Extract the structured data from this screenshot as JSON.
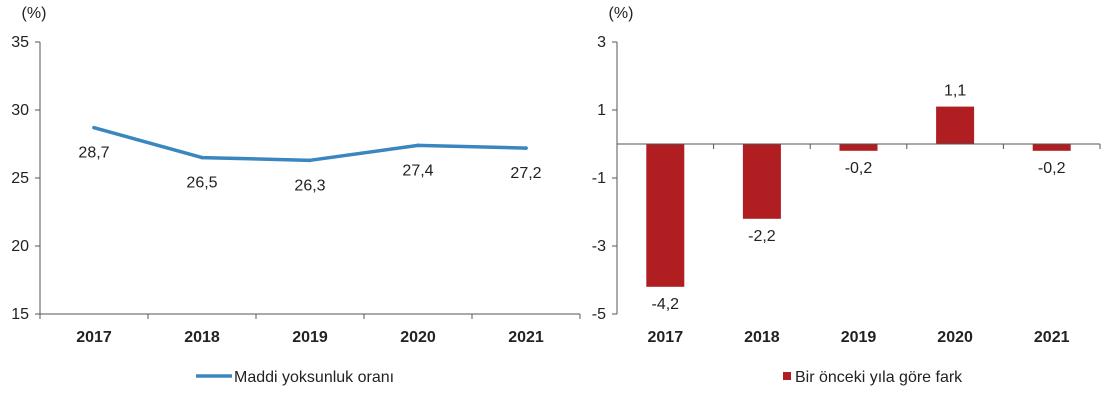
{
  "chart_data": [
    {
      "type": "line",
      "unit_label": "(%)",
      "categories": [
        "2017",
        "2018",
        "2019",
        "2020",
        "2021"
      ],
      "series": [
        {
          "name": "Maddi yoksunluk oranı",
          "values": [
            28.7,
            26.5,
            26.3,
            27.4,
            27.2
          ]
        }
      ],
      "data_labels": [
        "28,7",
        "26,5",
        "26,3",
        "27,4",
        "27,2"
      ],
      "ylim": [
        15,
        35
      ],
      "yticks": [
        15,
        20,
        25,
        30,
        35
      ],
      "ytick_labels": [
        "15",
        "20",
        "25",
        "30",
        "35"
      ],
      "grid": false,
      "legend_position": "bottom-left",
      "colors": {
        "series": "#3a87c0",
        "axis": "#555555"
      }
    },
    {
      "type": "bar",
      "unit_label": "(%)",
      "categories": [
        "2017",
        "2018",
        "2019",
        "2020",
        "2021"
      ],
      "series": [
        {
          "name": "Bir önceki yıla göre fark",
          "values": [
            -4.2,
            -2.2,
            -0.2,
            1.1,
            -0.2
          ]
        }
      ],
      "data_labels": [
        "-4,2",
        "-2,2",
        "-0,2",
        "1,1",
        "-0,2"
      ],
      "ylim": [
        -5,
        3
      ],
      "yticks": [
        -5,
        -3,
        -1,
        1,
        3
      ],
      "ytick_labels": [
        "-5",
        "-3",
        "-1",
        "1",
        "3"
      ],
      "grid": false,
      "legend_position": "bottom-center",
      "colors": {
        "series": "#b01e22",
        "axis": "#555555"
      }
    }
  ]
}
